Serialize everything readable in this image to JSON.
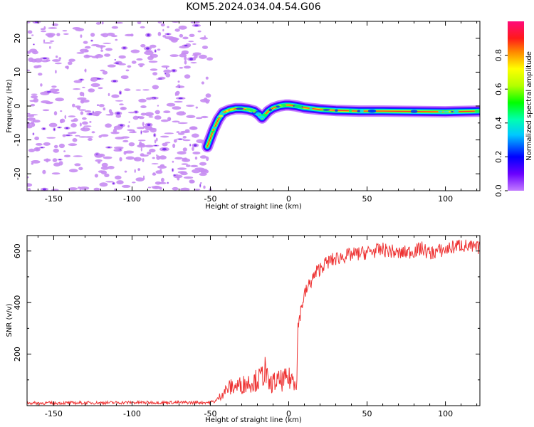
{
  "figure_title": "KOM5.2024.034.04.54.G06",
  "colors": {
    "snr_line": "#ee3333",
    "noise_speckle": "#c78cf2",
    "noise_core": "#7b2ff0",
    "axes": "#000000"
  },
  "chart_data": [
    {
      "type": "heatmap",
      "title": "",
      "xlabel": "Height of straight line (km)",
      "ylabel": "Frequency (Hz)",
      "xlim": [
        -167,
        122
      ],
      "ylim": [
        -25,
        25
      ],
      "x_ticks": [
        -150,
        -100,
        -50,
        0,
        50,
        100
      ],
      "y_ticks": [
        -20,
        -10,
        0,
        10,
        20
      ],
      "colorbar": {
        "label": "Normalized spectral amplitude",
        "range": [
          0,
          1
        ],
        "ticks": [
          "0.0",
          "0.2",
          "0.4",
          "0.6",
          "0.8"
        ],
        "colormap": "gist_rainbow_r"
      },
      "doppler_trace": {
        "x": [
          -52,
          -48,
          -45,
          -42,
          -38,
          -34,
          -30,
          -26,
          -22,
          -19,
          -17,
          -15,
          -13,
          -10,
          -6,
          -2,
          0,
          5,
          10,
          20,
          30,
          45,
          60,
          80,
          100,
          110,
          122
        ],
        "y": [
          -12,
          -7,
          -4,
          -2,
          -1.2,
          -0.8,
          -0.8,
          -1,
          -1.5,
          -2.5,
          -3.5,
          -2.5,
          -1.5,
          -0.6,
          0,
          0.3,
          0.3,
          0,
          -0.5,
          -1.0,
          -1.3,
          -1.5,
          -1.5,
          -1.6,
          -1.7,
          -1.6,
          -1.5
        ]
      },
      "noise_region_x": [
        -167,
        -50
      ]
    },
    {
      "type": "line",
      "title": "",
      "xlabel": "Height of straight line (km)",
      "ylabel": "SNR (v/v)",
      "xlim": [
        -167,
        122
      ],
      "ylim": [
        0,
        660
      ],
      "x_ticks": [
        -150,
        -100,
        -50,
        0,
        50,
        100
      ],
      "y_ticks": [
        200,
        400,
        600
      ],
      "series": [
        {
          "x": [
            -167,
            -150,
            -100,
            -60,
            -50,
            -46,
            -42,
            -38,
            -34,
            -30,
            -26,
            -22,
            -18,
            -15,
            -13,
            -10,
            -6,
            -2,
            2,
            5,
            6,
            6.5,
            8,
            10,
            14,
            18,
            22,
            26,
            30,
            35,
            40,
            45,
            50,
            55,
            60,
            65,
            70,
            75,
            80,
            85,
            90,
            95,
            100,
            105,
            110,
            115,
            122
          ],
          "y": [
            10,
            10,
            12,
            12,
            13,
            20,
            50,
            70,
            75,
            80,
            90,
            95,
            105,
            140,
            80,
            90,
            95,
            100,
            105,
            100,
            290,
            330,
            380,
            430,
            480,
            520,
            545,
            560,
            570,
            580,
            585,
            590,
            595,
            600,
            605,
            600,
            590,
            595,
            600,
            610,
            590,
            600,
            605,
            615,
            625,
            615,
            610
          ]
        }
      ]
    }
  ]
}
